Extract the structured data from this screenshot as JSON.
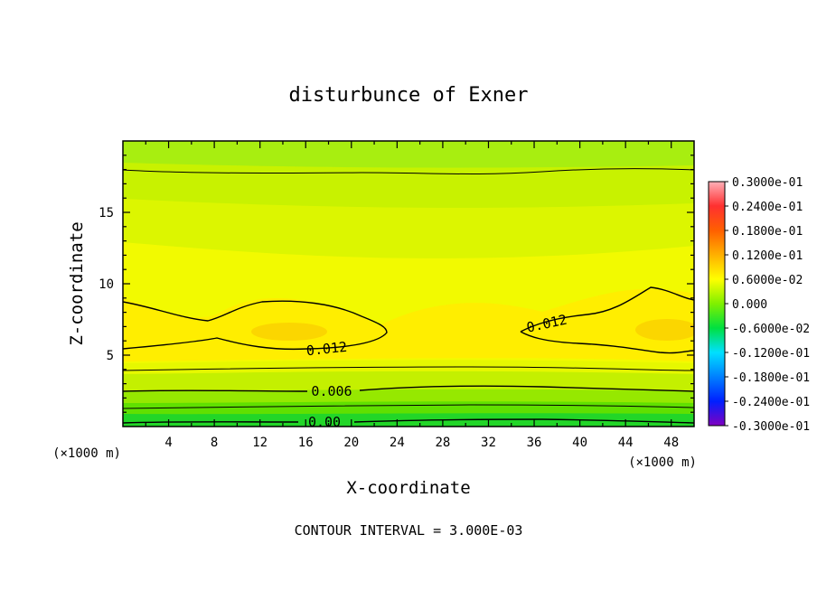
{
  "chart_data": {
    "type": "heatmap",
    "title": "disturbunce of Exner",
    "xlabel": "X-coordinate",
    "ylabel": "Z-coordinate",
    "x_unit": "(×1000 m)",
    "x_unit_right": "(×1000 m)",
    "xlim": [
      0,
      50
    ],
    "ylim": [
      0,
      20
    ],
    "x_ticks": [
      4,
      8,
      12,
      16,
      20,
      24,
      28,
      32,
      36,
      40,
      44,
      48
    ],
    "y_ticks": [
      5,
      10,
      15
    ],
    "colorbar": {
      "labels": [
        "0.3000e-01",
        "0.2400e-01",
        "0.1800e-01",
        "0.1200e-01",
        "0.6000e-02",
        "0.000",
        "-0.6000e-02",
        "-0.1200e-01",
        "-0.1800e-01",
        "-0.2400e-01",
        "-0.3000e-01"
      ],
      "range": [
        -0.03,
        0.03
      ]
    },
    "contour_labels": [
      {
        "text": "0.012",
        "x": 14.5,
        "z": 5.4,
        "angle": -6
      },
      {
        "text": "0.012",
        "x": 38.5,
        "z": 7.1,
        "angle": -12
      },
      {
        "text": "0.006",
        "x": 16.5,
        "z": 2.6,
        "angle": 0
      },
      {
        "text": "0.00",
        "x": 16.0,
        "z": 0.35,
        "angle": 0
      }
    ],
    "contour_interval_note": "CONTOUR INTERVAL = 3.000E-03"
  },
  "colors": {
    "background": "#ffffff",
    "frame": "#000000"
  }
}
